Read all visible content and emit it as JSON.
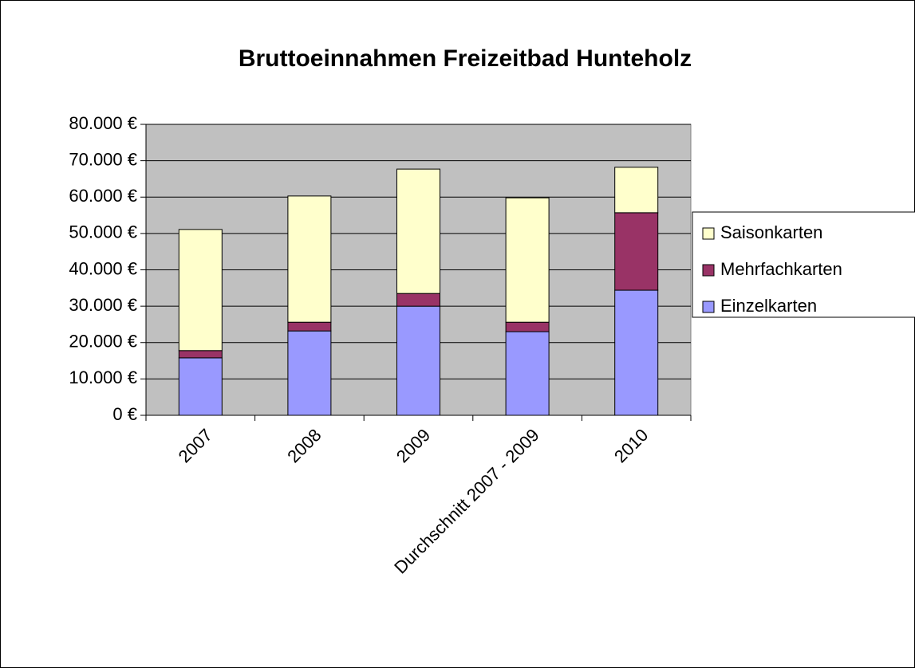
{
  "chart_data": {
    "type": "stacked_bar",
    "title": "Bruttoeinnahmen Freizeitbad Hunteholz",
    "categories": [
      "2007",
      "2008",
      "2009",
      "Durchschnitt 2007 - 2009",
      "2010"
    ],
    "series": [
      {
        "name": "Einzelkarten",
        "color": "#9999ff",
        "values": [
          15800,
          23200,
          30000,
          23000,
          34400
        ]
      },
      {
        "name": "Mehrfachkarten",
        "color": "#993366",
        "values": [
          2000,
          2400,
          3500,
          2600,
          21300
        ]
      },
      {
        "name": "Saisonkarten",
        "color": "#ffffcc",
        "values": [
          33300,
          34700,
          34200,
          34200,
          12500
        ]
      }
    ],
    "ylim": [
      0,
      80000
    ],
    "yticks": [
      {
        "value": 0,
        "label": "0 €"
      },
      {
        "value": 10000,
        "label": "10.000 €"
      },
      {
        "value": 20000,
        "label": "20.000 €"
      },
      {
        "value": 30000,
        "label": "30.000 €"
      },
      {
        "value": 40000,
        "label": "40.000 €"
      },
      {
        "value": 50000,
        "label": "50.000 €"
      },
      {
        "value": 60000,
        "label": "60.000 €"
      },
      {
        "value": 70000,
        "label": "70.000 €"
      },
      {
        "value": 80000,
        "label": "80.000 €"
      }
    ],
    "grid": true,
    "legend": "right"
  }
}
